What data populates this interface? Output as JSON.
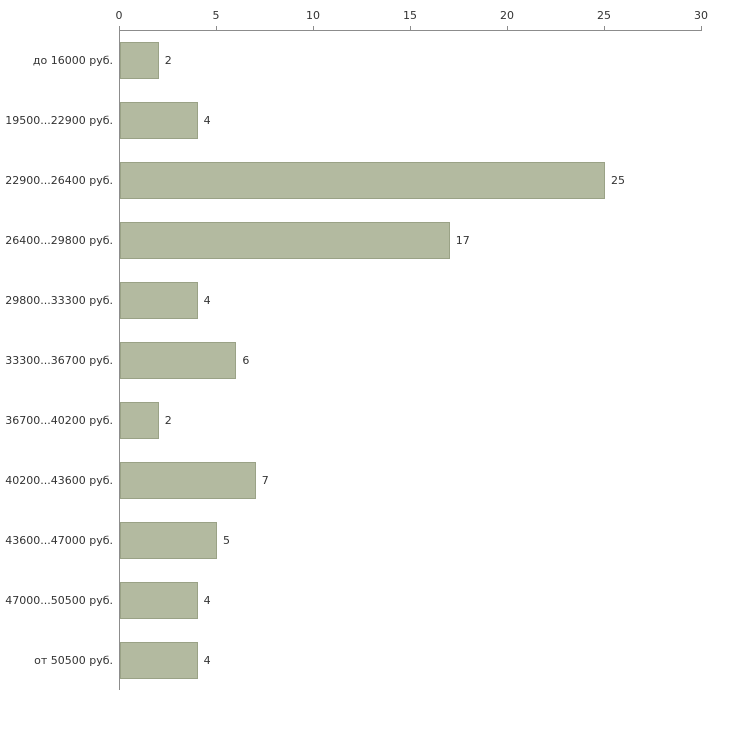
{
  "chart_data": {
    "type": "bar",
    "orientation": "horizontal",
    "title": "",
    "xlabel": "",
    "ylabel": "",
    "categories": [
      "до 16000 руб.",
      "19500...22900 руб.",
      "22900...26400 руб.",
      "26400...29800 руб.",
      "29800...33300 руб.",
      "33300...36700 руб.",
      "36700...40200 руб.",
      "40200...43600 руб.",
      "43600...47000 руб.",
      "47000...50500 руб.",
      "от 50500 руб."
    ],
    "values": [
      2,
      4,
      25,
      17,
      4,
      6,
      2,
      7,
      5,
      4,
      4
    ],
    "xlim": [
      0,
      30
    ],
    "x_ticks": [
      "0",
      "5",
      "10",
      "15",
      "20",
      "25",
      "30"
    ],
    "grid": false,
    "legend": null,
    "axis_position": "top",
    "bar_color": "#b3baa0",
    "bar_border_color": "#9aa286",
    "axis_color": "#8c8c8c",
    "background_color": "#ffffff"
  }
}
